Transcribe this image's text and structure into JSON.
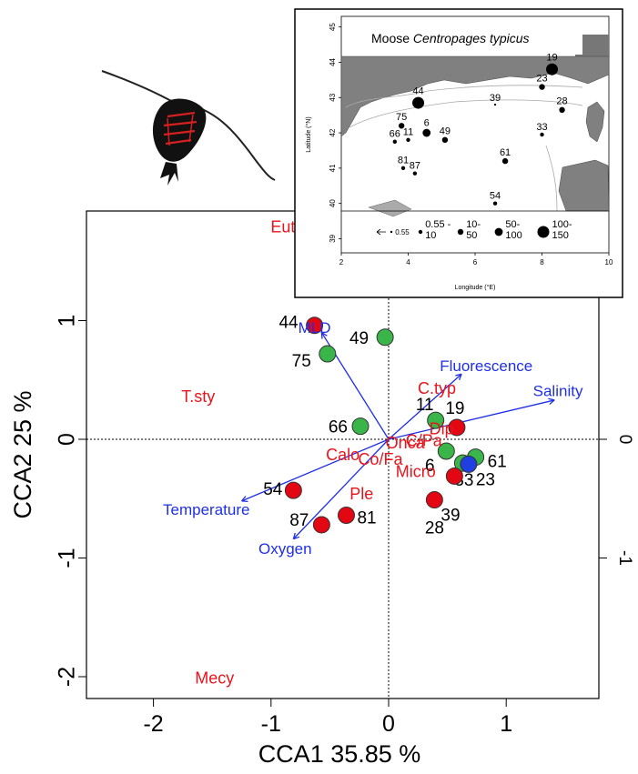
{
  "chart_data": {
    "type": "scatter",
    "xlabel": "CCA1  35.85 %",
    "ylabel": "CCA2  25 %",
    "xlim": [
      -2.5,
      1.8
    ],
    "ylim": [
      -2.2,
      1.9
    ],
    "x_ticks": [
      -2,
      -1,
      0,
      1
    ],
    "y_ticks": [
      -2,
      -1,
      0,
      1
    ],
    "y_ticks_right": [
      0,
      -1
    ],
    "grid": false,
    "colors": {
      "red": "#e30613",
      "green": "#39b54a",
      "blue": "#1f3fe0",
      "species": "#e8141b",
      "env": "#1f2fe8"
    },
    "stations": [
      {
        "label": "44",
        "x": -0.63,
        "y": 0.96,
        "color": "red"
      },
      {
        "label": "49",
        "x": -0.03,
        "y": 0.86,
        "color": "green"
      },
      {
        "label": "75",
        "x": -0.52,
        "y": 0.72,
        "color": "green"
      },
      {
        "label": "11",
        "x": 0.4,
        "y": 0.16,
        "color": "green"
      },
      {
        "label": "19",
        "x": 0.58,
        "y": 0.1,
        "color": "red"
      },
      {
        "label": "66",
        "x": -0.24,
        "y": 0.11,
        "color": "green"
      },
      {
        "label": "6",
        "x": 0.49,
        "y": -0.1,
        "color": "green"
      },
      {
        "label": "33",
        "x": 0.63,
        "y": -0.2,
        "color": "green"
      },
      {
        "label": "61",
        "x": 0.74,
        "y": -0.15,
        "color": "green"
      },
      {
        "label": "23",
        "x": 0.68,
        "y": -0.21,
        "color": "blue"
      },
      {
        "label": "",
        "x": 0.56,
        "y": -0.31,
        "color": "red"
      },
      {
        "label": "39",
        "x": 0.39,
        "y": -0.51,
        "color": "red"
      },
      {
        "label": "28",
        "x": 0.39,
        "y": -0.51,
        "color": "red",
        "dup": true
      },
      {
        "label": "54",
        "x": -0.81,
        "y": -0.43,
        "color": "red"
      },
      {
        "label": "81",
        "x": -0.36,
        "y": -0.64,
        "color": "red"
      },
      {
        "label": "87",
        "x": -0.57,
        "y": -0.72,
        "color": "red"
      }
    ],
    "species": [
      {
        "label": "Eute",
        "x": -0.86,
        "y": 1.78
      },
      {
        "label": "T.sty",
        "x": -1.62,
        "y": 0.35
      },
      {
        "label": "Mecy",
        "x": -1.48,
        "y": -2.02
      },
      {
        "label": "C.typ",
        "x": 0.41,
        "y": 0.42
      },
      {
        "label": "Dip",
        "x": 0.45,
        "y": 0.08
      },
      {
        "label": "Onca",
        "x": 0.14,
        "y": -0.04
      },
      {
        "label": "C/Pa",
        "x": 0.3,
        "y": -0.02
      },
      {
        "label": "Calo",
        "x": -0.39,
        "y": -0.14
      },
      {
        "label": "Co/Fa",
        "x": -0.07,
        "y": -0.18
      },
      {
        "label": "Micro",
        "x": 0.23,
        "y": -0.28
      },
      {
        "label": "Ple",
        "x": -0.23,
        "y": -0.47
      }
    ],
    "env_vectors": [
      {
        "label": "MLD",
        "x": -0.57,
        "y": 0.9,
        "lx": -0.63,
        "ly": 0.93
      },
      {
        "label": "Fluorescence",
        "x": 0.62,
        "y": 0.55,
        "lx": 0.83,
        "ly": 0.61
      },
      {
        "label": "Salinity",
        "x": 1.41,
        "y": 0.33,
        "lx": 1.44,
        "ly": 0.4
      },
      {
        "label": "Temperature",
        "x": -1.25,
        "y": -0.52,
        "lx": -1.55,
        "ly": -0.6
      },
      {
        "label": "Oxygen",
        "x": -0.81,
        "y": -0.84,
        "lx": -0.88,
        "ly": -0.93
      }
    ]
  },
  "inset": {
    "title_prefix": "Moose",
    "title_species": "Centropages typicus",
    "xlabel": "Longitude (°E)",
    "ylabel": "Latitude (°N)",
    "xlim": [
      2,
      10
    ],
    "ylim": [
      38.6,
      45.3
    ],
    "x_ticks": [
      2,
      4,
      6,
      8,
      10
    ],
    "y_ticks": [
      39,
      40,
      41,
      42,
      43,
      44,
      45
    ],
    "stations": [
      {
        "label": "19",
        "lon": 8.3,
        "lat": 43.8,
        "size": 4
      },
      {
        "label": "23",
        "lon": 8.0,
        "lat": 43.3,
        "size": 2
      },
      {
        "label": "44",
        "lon": 4.3,
        "lat": 42.85,
        "size": 4
      },
      {
        "label": "28",
        "lon": 8.6,
        "lat": 42.65,
        "size": 2
      },
      {
        "label": "39",
        "lon": 6.6,
        "lat": 42.8,
        "size": 0
      },
      {
        "label": "75",
        "lon": 3.8,
        "lat": 42.2,
        "size": 2
      },
      {
        "label": "6",
        "lon": 4.55,
        "lat": 42.0,
        "size": 3
      },
      {
        "label": "11",
        "lon": 4.0,
        "lat": 41.8,
        "size": 1
      },
      {
        "label": "49",
        "lon": 5.1,
        "lat": 41.8,
        "size": 2
      },
      {
        "label": "33",
        "lon": 8.0,
        "lat": 41.95,
        "size": 1
      },
      {
        "label": "66",
        "lon": 3.6,
        "lat": 41.75,
        "size": 1
      },
      {
        "label": "61",
        "lon": 6.9,
        "lat": 41.2,
        "size": 2
      },
      {
        "label": "81",
        "lon": 3.85,
        "lat": 41.0,
        "size": 1
      },
      {
        "label": "87",
        "lon": 4.2,
        "lat": 40.85,
        "size": 1
      },
      {
        "label": "54",
        "lon": 6.6,
        "lat": 40.0,
        "size": 1
      }
    ],
    "legend": [
      {
        "label": "0.55",
        "size": 0
      },
      {
        "label": "0.55 -\n10",
        "size": 1
      },
      {
        "label": "10-\n50",
        "size": 2
      },
      {
        "label": "50-\n100",
        "size": 3
      },
      {
        "label": "100-\n150",
        "size": 4
      }
    ]
  }
}
